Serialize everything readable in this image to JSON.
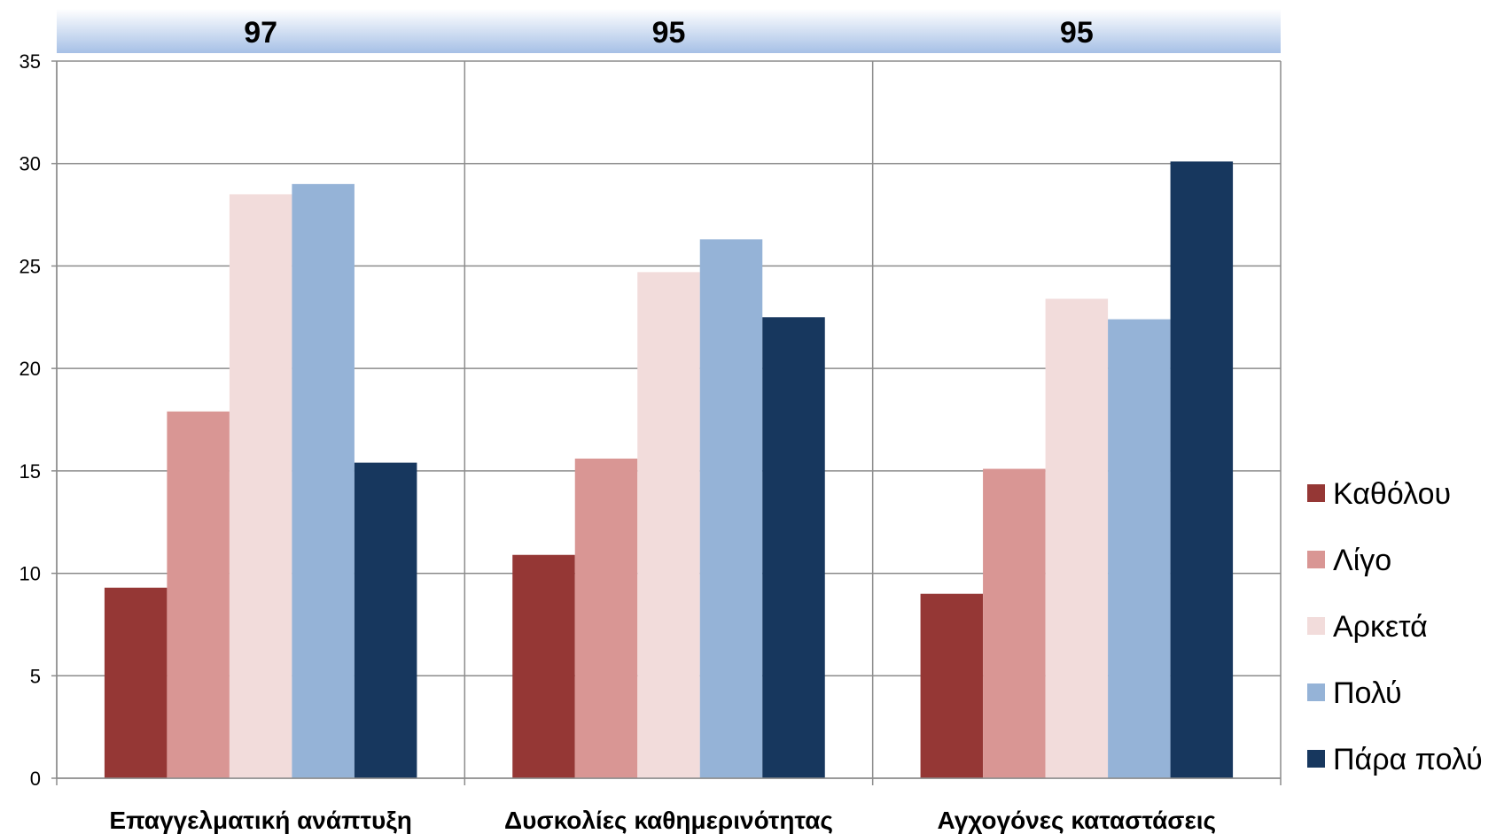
{
  "chart_data": {
    "type": "bar",
    "categories": [
      "Επαγγελματική ανάπτυξη",
      "Δυσκολίες καθημερινότητας",
      "Αγχογόνες καταστάσεις"
    ],
    "group_headers": [
      "97",
      "95",
      "95"
    ],
    "series": [
      {
        "name": "Καθόλου",
        "color": "#953735",
        "values": [
          9.3,
          10.9,
          9.0
        ]
      },
      {
        "name": "Λίγο",
        "color": "#D99694",
        "values": [
          17.9,
          15.6,
          15.1
        ]
      },
      {
        "name": "Αρκετά",
        "color": "#F2DCDB",
        "values": [
          28.5,
          24.7,
          23.4
        ]
      },
      {
        "name": "Πολύ",
        "color": "#95B3D7",
        "values": [
          29.0,
          26.3,
          22.4
        ]
      },
      {
        "name": "Πάρα πολύ",
        "color": "#17375E",
        "values": [
          15.4,
          22.5,
          30.1
        ]
      }
    ],
    "ylim": [
      0,
      35
    ],
    "yticks": [
      "0",
      "5",
      "10",
      "15",
      "20",
      "25",
      "30",
      "35"
    ],
    "grid": true,
    "legend": "right"
  }
}
